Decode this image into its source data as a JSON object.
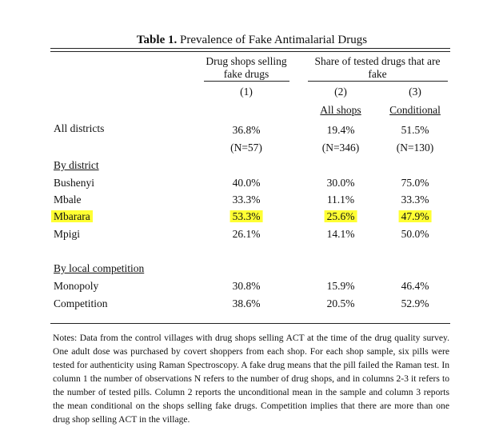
{
  "title": {
    "bold": "Table 1.",
    "text": "Prevalence of Fake Antimalarial Drugs"
  },
  "header": {
    "col1_line1": "Drug shops selling",
    "col1_line2": "fake drugs",
    "col23_line1": "Share of tested drugs that are",
    "col23_line2": "fake",
    "num1": "(1)",
    "num2": "(2)",
    "num3": "(3)",
    "sub2": "All shops",
    "sub3": "Conditional"
  },
  "rows": {
    "all": {
      "label": "All districts",
      "v1": "36.8%",
      "v2": "19.4%",
      "v3": "51.5%",
      "n1": "(N=57)",
      "n2": "(N=346)",
      "n3": "(N=130)"
    },
    "by_district": "By district",
    "districts": [
      {
        "label": "Bushenyi",
        "v1": "40.0%",
        "v2": "30.0%",
        "v3": "75.0%"
      },
      {
        "label": "Mbale",
        "v1": "33.3%",
        "v2": "11.1%",
        "v3": "33.3%"
      },
      {
        "label": "Mbarara",
        "v1": "53.3%",
        "v2": "25.6%",
        "v3": "47.9%"
      },
      {
        "label": "Mpigi",
        "v1": "26.1%",
        "v2": "14.1%",
        "v3": "50.0%"
      }
    ],
    "by_competition": "By local competition",
    "competition": [
      {
        "label": "Monopoly",
        "v1": "30.8%",
        "v2": "15.9%",
        "v3": "46.4%"
      },
      {
        "label": "Competition",
        "v1": "38.6%",
        "v2": "20.5%",
        "v3": "52.9%"
      }
    ]
  },
  "highlight_color": "#ffff33",
  "notes": "Notes: Data from the control villages with drug shops selling ACT at the time of the drug quality survey. One adult dose was purchased by covert shoppers from each shop. For each shop sample, six pills were tested for authenticity using Raman Spectroscopy. A fake drug means that the pill failed the Raman test. In column 1 the number of observations N refers to the number of drug shops, and in columns 2-3 it refers to the number of tested pills. Column 2 reports the unconditional mean in the sample and column 3 reports the mean conditional on the shops selling fake drugs. Competition implies that there are more than one drug shop selling ACT in the village."
}
